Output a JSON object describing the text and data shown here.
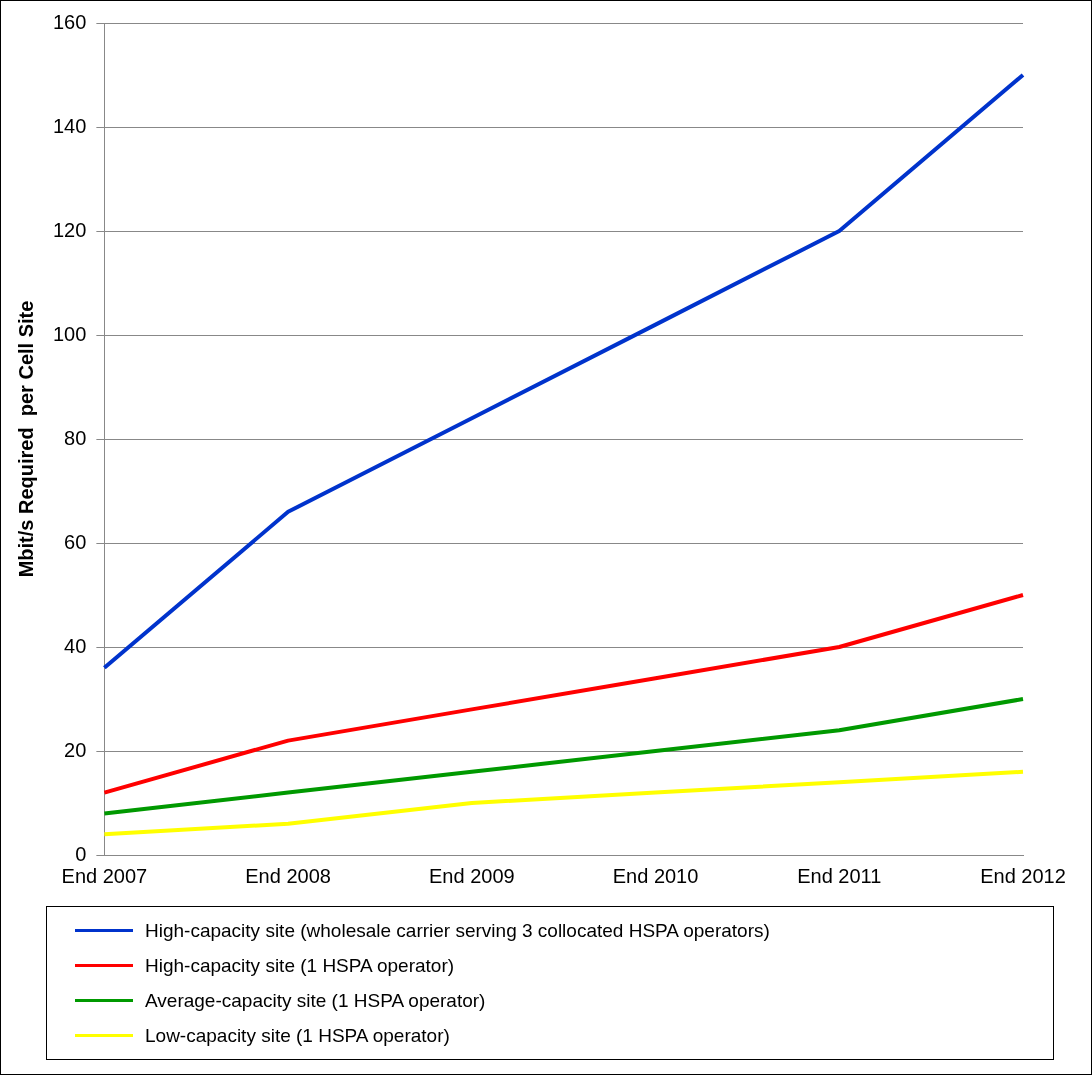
{
  "chart_data": {
    "type": "line",
    "ylabel": "Mbit/s Required  per Cell Site",
    "categories": [
      "End 2007",
      "End 2008",
      "End 2009",
      "End 2010",
      "End 2011",
      "End 2012"
    ],
    "series": [
      {
        "name": "High-capacity site (wholesale carrier serving 3 collocated HSPA operators)",
        "color": "#0033cc",
        "values": [
          36,
          66,
          84,
          102,
          120,
          150
        ]
      },
      {
        "name": "High-capacity site (1 HSPA operator)",
        "color": "#ff0000",
        "values": [
          12,
          22,
          28,
          34,
          40,
          50
        ]
      },
      {
        "name": "Average-capacity site (1 HSPA operator)",
        "color": "#009900",
        "values": [
          8,
          12,
          16,
          20,
          24,
          30
        ]
      },
      {
        "name": "Low-capacity site (1 HSPA operator)",
        "color": "#ffff00",
        "values": [
          4,
          6,
          10,
          12,
          14,
          16
        ]
      }
    ],
    "ylim": [
      0,
      160
    ],
    "yticks": [
      0,
      20,
      40,
      60,
      80,
      100,
      120,
      140,
      160
    ],
    "grid": "y",
    "legend": "bottom",
    "marker": "none",
    "line_style": "solid"
  }
}
